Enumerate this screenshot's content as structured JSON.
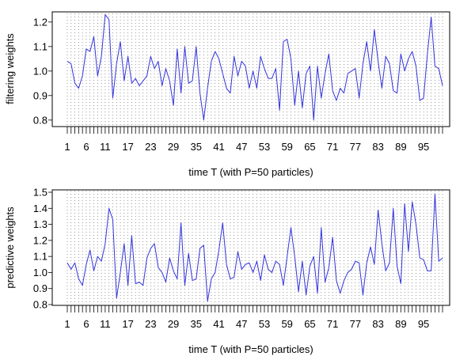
{
  "figure": {
    "background": "#ffffff",
    "line_color": "#3333dd",
    "grid_color": "#555555"
  },
  "chart_data": [
    {
      "type": "line",
      "title": "",
      "xlabel": "time T (with P=50 particles)",
      "ylabel": "filtering weights",
      "xlim": [
        1,
        100
      ],
      "ylim": [
        0.78,
        1.235
      ],
      "yticks": [
        0.8,
        0.9,
        1.0,
        1.1,
        1.2
      ],
      "ytick_labels": [
        "0.8",
        "0.9",
        "1.0",
        "1.1",
        "1.2"
      ],
      "xtick_labels": [
        "1",
        "6",
        "11",
        "17",
        "23",
        "29",
        "35",
        "41",
        "47",
        "53",
        "59",
        "65",
        "71",
        "77",
        "83",
        "89",
        "95"
      ],
      "grid": true,
      "series": [
        {
          "name": "filtering weights",
          "color": "#3333dd",
          "x": [
            1,
            2,
            3,
            4,
            5,
            6,
            7,
            8,
            9,
            10,
            11,
            12,
            13,
            14,
            15,
            16,
            17,
            18,
            19,
            20,
            21,
            22,
            23,
            24,
            25,
            26,
            27,
            28,
            29,
            30,
            31,
            32,
            33,
            34,
            35,
            36,
            37,
            38,
            39,
            40,
            41,
            42,
            43,
            44,
            45,
            46,
            47,
            48,
            49,
            50,
            51,
            52,
            53,
            54,
            55,
            56,
            57,
            58,
            59,
            60,
            61,
            62,
            63,
            64,
            65,
            66,
            67,
            68,
            69,
            70,
            71,
            72,
            73,
            74,
            75,
            76,
            77,
            78,
            79,
            80,
            81,
            82,
            83,
            84,
            85,
            86,
            87,
            88,
            89,
            90,
            91,
            92,
            93,
            94,
            95,
            96,
            97,
            98,
            99,
            100
          ],
          "values": [
            1.04,
            1.03,
            0.95,
            0.93,
            0.98,
            1.09,
            1.08,
            1.14,
            0.98,
            1.06,
            1.23,
            1.21,
            0.89,
            1.03,
            1.12,
            0.96,
            1.06,
            0.95,
            0.97,
            0.94,
            0.96,
            0.98,
            1.06,
            1.01,
            1.04,
            0.94,
            1.01,
            0.96,
            0.86,
            1.09,
            0.91,
            1.1,
            0.95,
            0.96,
            1.1,
            0.91,
            0.8,
            0.93,
            1.04,
            1.08,
            1.05,
            0.99,
            0.93,
            0.91,
            1.06,
            0.98,
            1.04,
            1.02,
            0.93,
            1.0,
            0.93,
            1.06,
            1.01,
            0.97,
            0.97,
            1.01,
            0.84,
            1.12,
            1.13,
            1.05,
            0.86,
            1.0,
            0.85,
            0.99,
            1.02,
            0.8,
            1.02,
            0.89,
            0.99,
            1.07,
            0.92,
            0.88,
            0.93,
            0.91,
            0.99,
            1.0,
            1.01,
            0.89,
            1.03,
            1.12,
            1.0,
            1.17,
            1.04,
            0.93,
            1.06,
            1.03,
            0.92,
            0.91,
            1.07,
            1.0,
            1.05,
            1.08,
            1.02,
            0.88,
            0.89,
            1.07,
            1.22,
            1.02,
            1.01,
            0.94
          ]
        }
      ]
    },
    {
      "type": "line",
      "title": "",
      "xlabel": "time T (with P=50 particles)",
      "ylabel": "predictive weights",
      "xlim": [
        1,
        100
      ],
      "ylim": [
        0.8,
        1.51
      ],
      "yticks": [
        0.8,
        0.9,
        1.0,
        1.1,
        1.2,
        1.3,
        1.4,
        1.5
      ],
      "ytick_labels": [
        "0.8",
        "0.9",
        "1.0",
        "1.1",
        "1.2",
        "1.3",
        "1.4",
        "1.5"
      ],
      "xtick_labels": [
        "1",
        "6",
        "11",
        "17",
        "23",
        "29",
        "35",
        "41",
        "47",
        "53",
        "59",
        "65",
        "71",
        "77",
        "83",
        "89",
        "95"
      ],
      "grid": true,
      "series": [
        {
          "name": "predictive weights",
          "color": "#3333dd",
          "x": [
            1,
            2,
            3,
            4,
            5,
            6,
            7,
            8,
            9,
            10,
            11,
            12,
            13,
            14,
            15,
            16,
            17,
            18,
            19,
            20,
            21,
            22,
            23,
            24,
            25,
            26,
            27,
            28,
            29,
            30,
            31,
            32,
            33,
            34,
            35,
            36,
            37,
            38,
            39,
            40,
            41,
            42,
            43,
            44,
            45,
            46,
            47,
            48,
            49,
            50,
            51,
            52,
            53,
            54,
            55,
            56,
            57,
            58,
            59,
            60,
            61,
            62,
            63,
            64,
            65,
            66,
            67,
            68,
            69,
            70,
            71,
            72,
            73,
            74,
            75,
            76,
            77,
            78,
            79,
            80,
            81,
            82,
            83,
            84,
            85,
            86,
            87,
            88,
            89,
            90,
            91,
            92,
            93,
            94,
            95,
            96,
            97,
            98,
            99,
            100
          ],
          "values": [
            1.06,
            1.02,
            1.06,
            0.96,
            0.92,
            1.05,
            1.14,
            1.01,
            1.1,
            1.07,
            1.18,
            1.4,
            1.33,
            0.84,
            1.0,
            1.18,
            0.92,
            1.23,
            0.93,
            0.94,
            0.92,
            1.09,
            1.15,
            1.18,
            1.03,
            1.0,
            0.94,
            1.09,
            1.01,
            0.96,
            1.31,
            0.92,
            1.12,
            0.95,
            0.96,
            1.15,
            1.17,
            0.82,
            0.96,
            1.0,
            1.14,
            1.31,
            1.05,
            0.96,
            0.97,
            1.13,
            1.02,
            1.05,
            1.06,
            1.0,
            1.07,
            0.95,
            1.11,
            1.02,
            1.0,
            1.07,
            1.05,
            0.92,
            1.1,
            1.28,
            1.1,
            0.88,
            1.07,
            0.86,
            1.04,
            1.1,
            0.87,
            1.28,
            0.94,
            1.03,
            1.22,
            0.95,
            0.87,
            0.95,
            1.0,
            1.02,
            1.07,
            1.06,
            0.86,
            1.06,
            1.16,
            1.05,
            1.39,
            1.18,
            1.01,
            1.06,
            1.4,
            1.04,
            0.93,
            1.43,
            1.13,
            1.44,
            1.3,
            1.09,
            1.08,
            1.01,
            1.01,
            1.49,
            1.07,
            1.09
          ]
        }
      ]
    }
  ]
}
